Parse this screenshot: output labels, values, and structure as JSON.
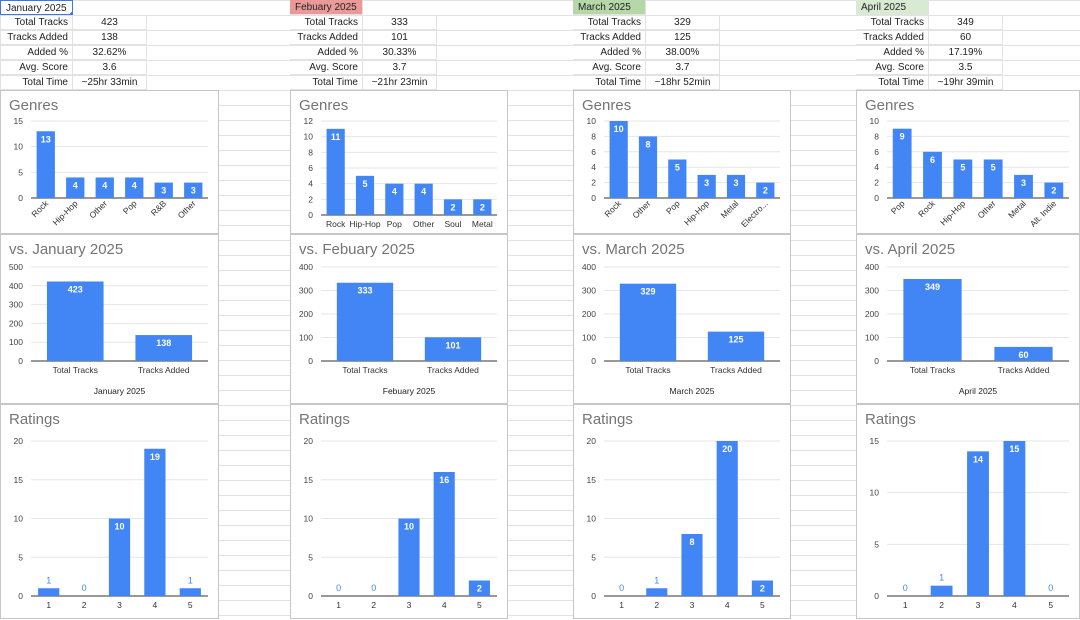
{
  "months": [
    {
      "name": "January 2025",
      "header_color": "#ffffff",
      "stats": [
        {
          "label": "Total Tracks",
          "value": "423"
        },
        {
          "label": "Tracks Added",
          "value": "138"
        },
        {
          "label": "Added %",
          "value": "32.62%"
        },
        {
          "label": "Avg. Score",
          "value": "3.6"
        },
        {
          "label": "Total Time",
          "value": "~25hr 33min"
        }
      ],
      "genres": {
        "title": "Genres",
        "categories": [
          "Rock",
          "Hip-Hop",
          "Other",
          "Pop",
          "R&B",
          "Other"
        ],
        "values": [
          13,
          4,
          4,
          4,
          3,
          3
        ],
        "ymax": 15,
        "ticks": [
          0,
          5,
          10,
          15
        ],
        "rotated": true
      },
      "compare": {
        "title": "vs. January 2025",
        "categories": [
          "Total Tracks",
          "Tracks Added"
        ],
        "values": [
          423,
          138
        ],
        "ymax": 500,
        "ticks": [
          0,
          100,
          200,
          300,
          400,
          500
        ],
        "xlabel": "January 2025"
      },
      "ratings": {
        "title": "Ratings",
        "categories": [
          "1",
          "2",
          "3",
          "4",
          "5"
        ],
        "values": [
          1,
          0,
          10,
          19,
          1
        ],
        "ymax": 20,
        "ticks": [
          0,
          5,
          10,
          15,
          20
        ]
      }
    },
    {
      "name": "Febuary 2025",
      "header_color": "#ea9999",
      "stats": [
        {
          "label": "Total Tracks",
          "value": "333"
        },
        {
          "label": "Tracks Added",
          "value": "101"
        },
        {
          "label": "Added %",
          "value": "30.33%"
        },
        {
          "label": "Avg. Score",
          "value": "3.7"
        },
        {
          "label": "Total Time",
          "value": "~21hr 23min"
        }
      ],
      "genres": {
        "title": "Genres",
        "categories": [
          "Rock",
          "Hip-Hop",
          "Pop",
          "Other",
          "Soul",
          "Metal"
        ],
        "values": [
          11,
          5,
          4,
          4,
          2,
          2
        ],
        "ymax": 12,
        "ticks": [
          0,
          2,
          4,
          6,
          8,
          10,
          12
        ],
        "rotated": false
      },
      "compare": {
        "title": "vs. Febuary 2025",
        "categories": [
          "Total Tracks",
          "Tracks Added"
        ],
        "values": [
          333,
          101
        ],
        "ymax": 400,
        "ticks": [
          0,
          100,
          200,
          300,
          400
        ],
        "xlabel": "Febuary 2025"
      },
      "ratings": {
        "title": "Ratings",
        "categories": [
          "1",
          "2",
          "3",
          "4",
          "5"
        ],
        "values": [
          0,
          0,
          10,
          16,
          2
        ],
        "ymax": 20,
        "ticks": [
          0,
          5,
          10,
          15,
          20
        ]
      }
    },
    {
      "name": "March 2025",
      "header_color": "#b6d7a8",
      "stats": [
        {
          "label": "Total Tracks",
          "value": "329"
        },
        {
          "label": "Tracks Added",
          "value": "125"
        },
        {
          "label": "Added %",
          "value": "38.00%"
        },
        {
          "label": "Avg. Score",
          "value": "3.7"
        },
        {
          "label": "Total Time",
          "value": "~18hr 52min"
        }
      ],
      "genres": {
        "title": "Genres",
        "categories": [
          "Rock",
          "Other",
          "Pop",
          "Hip-Hop",
          "Metal",
          "Electro..."
        ],
        "values": [
          10,
          8,
          5,
          3,
          3,
          2
        ],
        "ymax": 10,
        "ticks": [
          0,
          2,
          4,
          6,
          8,
          10
        ],
        "rotated": true
      },
      "compare": {
        "title": "vs. March 2025",
        "categories": [
          "Total Tracks",
          "Tracks Added"
        ],
        "values": [
          329,
          125
        ],
        "ymax": 400,
        "ticks": [
          0,
          100,
          200,
          300,
          400
        ],
        "xlabel": "March 2025"
      },
      "ratings": {
        "title": "Ratings",
        "categories": [
          "1",
          "2",
          "3",
          "4",
          "5"
        ],
        "values": [
          0,
          1,
          8,
          20,
          2
        ],
        "ymax": 20,
        "ticks": [
          0,
          5,
          10,
          15,
          20
        ]
      }
    },
    {
      "name": "April 2025",
      "header_color": "#d9ead3",
      "stats": [
        {
          "label": "Total Tracks",
          "value": "349"
        },
        {
          "label": "Tracks Added",
          "value": "60"
        },
        {
          "label": "Added %",
          "value": "17.19%"
        },
        {
          "label": "Avg. Score",
          "value": "3.5"
        },
        {
          "label": "Total Time",
          "value": "~19hr 39min"
        }
      ],
      "genres": {
        "title": "Genres",
        "categories": [
          "Pop",
          "Rock",
          "Hip-Hop",
          "Other",
          "Metal",
          "Alt. Indie"
        ],
        "values": [
          9,
          6,
          5,
          5,
          3,
          2
        ],
        "ymax": 10,
        "ticks": [
          0,
          2,
          4,
          6,
          8,
          10
        ],
        "rotated": true
      },
      "compare": {
        "title": "vs. April 2025",
        "categories": [
          "Total Tracks",
          "Tracks Added"
        ],
        "values": [
          349,
          60
        ],
        "ymax": 400,
        "ticks": [
          0,
          100,
          200,
          300,
          400
        ],
        "xlabel": "April 2025"
      },
      "ratings": {
        "title": "Ratings",
        "categories": [
          "1",
          "2",
          "3",
          "4",
          "5"
        ],
        "values": [
          0,
          1,
          14,
          15,
          0
        ],
        "ymax": 15,
        "ticks": [
          0,
          5,
          10,
          15
        ]
      }
    }
  ],
  "colors": {
    "bar": "#4285f4",
    "selection": "#1a73e8"
  }
}
